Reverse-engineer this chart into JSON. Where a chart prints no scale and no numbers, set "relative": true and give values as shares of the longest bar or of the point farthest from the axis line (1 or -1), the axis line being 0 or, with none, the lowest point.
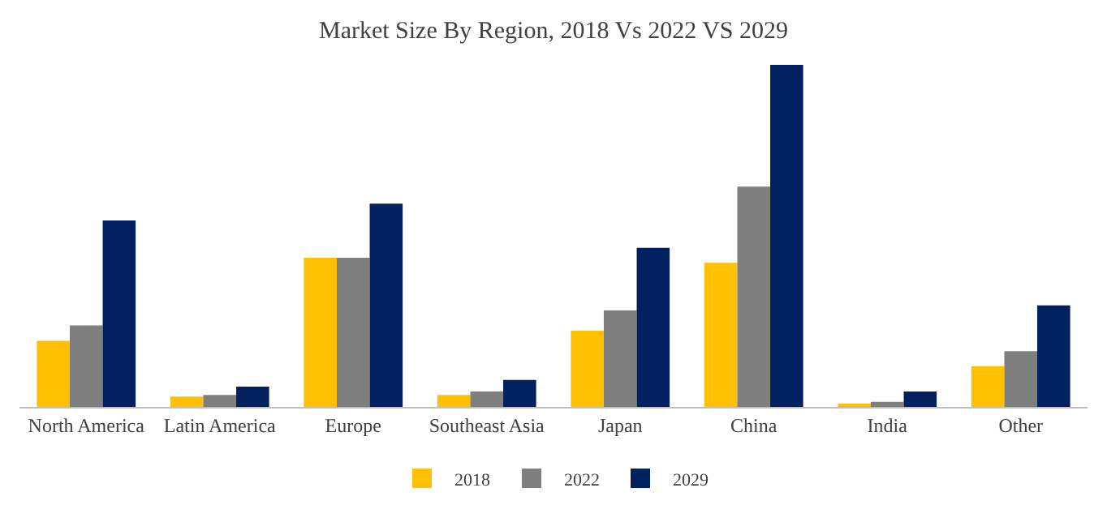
{
  "chart_data": {
    "type": "bar",
    "title": "Market Size By Region, 2018 Vs 2022 VS 2029",
    "relative": true,
    "categories": [
      "North America",
      "Latin America",
      "Europe",
      "Southeast Asia",
      "Japan",
      "China",
      "India",
      "Other"
    ],
    "series": [
      {
        "name": "2018",
        "color": "#ffc000",
        "values": [
          0.193,
          0.03,
          0.436,
          0.035,
          0.223,
          0.421,
          0.01,
          0.119
        ]
      },
      {
        "name": "2022",
        "color": "#7f7f7f",
        "values": [
          0.238,
          0.035,
          0.436,
          0.045,
          0.282,
          0.644,
          0.015,
          0.163
        ]
      },
      {
        "name": "2029",
        "color": "#002060",
        "values": [
          0.545,
          0.059,
          0.594,
          0.079,
          0.465,
          1,
          0.045,
          0.297
        ]
      }
    ],
    "legend": "bottom"
  }
}
